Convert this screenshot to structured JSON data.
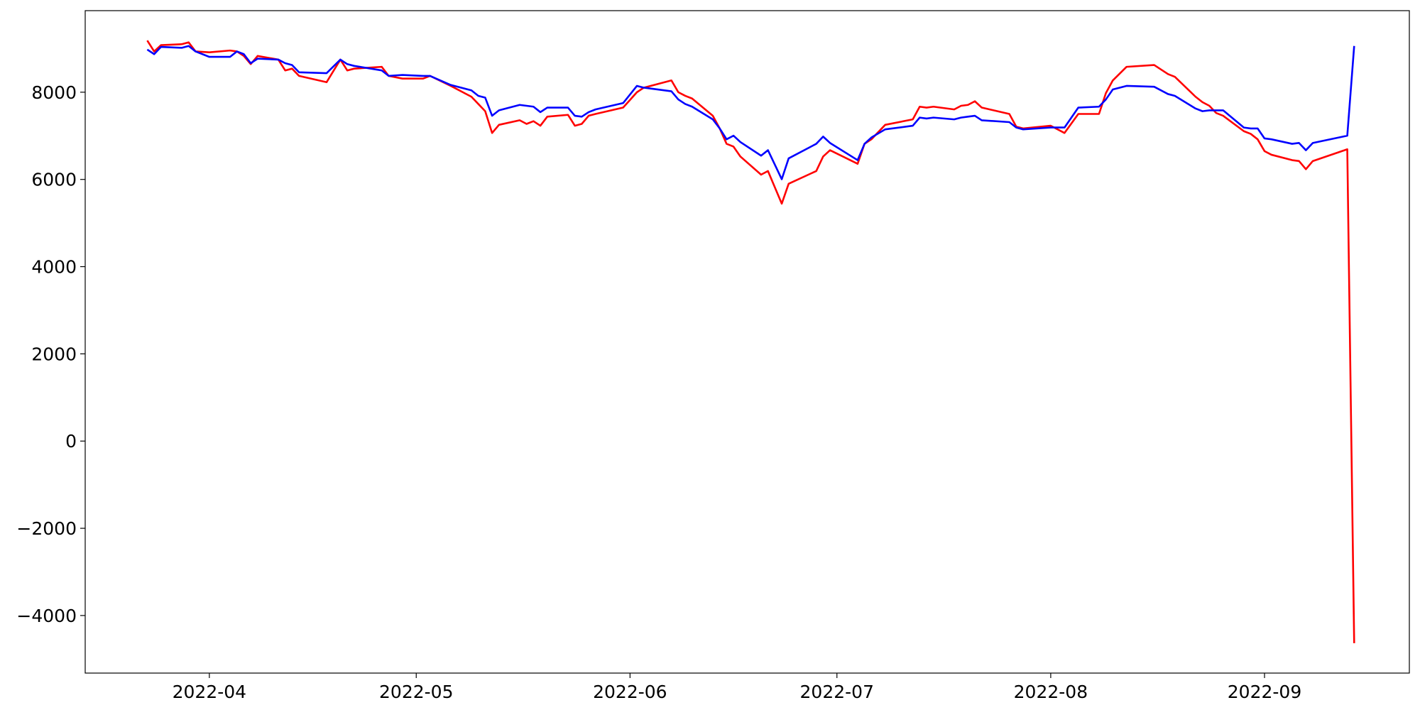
{
  "chart_data": {
    "type": "line",
    "x": [
      "2022-03-23",
      "2022-03-24",
      "2022-03-25",
      "2022-03-28",
      "2022-03-29",
      "2022-03-30",
      "2022-04-01",
      "2022-04-04",
      "2022-04-05",
      "2022-04-06",
      "2022-04-07",
      "2022-04-08",
      "2022-04-11",
      "2022-04-12",
      "2022-04-13",
      "2022-04-14",
      "2022-04-18",
      "2022-04-20",
      "2022-04-21",
      "2022-04-22",
      "2022-04-26",
      "2022-04-27",
      "2022-04-29",
      "2022-05-02",
      "2022-05-03",
      "2022-05-06",
      "2022-05-09",
      "2022-05-10",
      "2022-05-11",
      "2022-05-12",
      "2022-05-13",
      "2022-05-16",
      "2022-05-17",
      "2022-05-18",
      "2022-05-19",
      "2022-05-20",
      "2022-05-23",
      "2022-05-24",
      "2022-05-25",
      "2022-05-26",
      "2022-05-27",
      "2022-05-31",
      "2022-06-02",
      "2022-06-03",
      "2022-06-07",
      "2022-06-08",
      "2022-06-09",
      "2022-06-10",
      "2022-06-13",
      "2022-06-14",
      "2022-06-15",
      "2022-06-16",
      "2022-06-17",
      "2022-06-20",
      "2022-06-21",
      "2022-06-22",
      "2022-06-23",
      "2022-06-24",
      "2022-06-28",
      "2022-06-29",
      "2022-06-30",
      "2022-07-04",
      "2022-07-05",
      "2022-07-06",
      "2022-07-08",
      "2022-07-12",
      "2022-07-13",
      "2022-07-14",
      "2022-07-15",
      "2022-07-18",
      "2022-07-19",
      "2022-07-20",
      "2022-07-21",
      "2022-07-22",
      "2022-07-26",
      "2022-07-27",
      "2022-07-28",
      "2022-08-01",
      "2022-08-03",
      "2022-08-05",
      "2022-08-08",
      "2022-08-09",
      "2022-08-10",
      "2022-08-12",
      "2022-08-16",
      "2022-08-18",
      "2022-08-19",
      "2022-08-22",
      "2022-08-23",
      "2022-08-24",
      "2022-08-25",
      "2022-08-26",
      "2022-08-29",
      "2022-08-30",
      "2022-08-31",
      "2022-09-01",
      "2022-09-02",
      "2022-09-05",
      "2022-09-06",
      "2022-09-07",
      "2022-09-08",
      "2022-09-13",
      "2022-09-14"
    ],
    "series": [
      {
        "color": "#ff0000",
        "values": [
          9185,
          8935,
          9080,
          9101,
          9143,
          8935,
          8914,
          8956,
          8935,
          8831,
          8644,
          8831,
          8748,
          8499,
          8540,
          8374,
          8229,
          8748,
          8499,
          8540,
          8582,
          8374,
          8312,
          8312,
          8374,
          8145,
          7896,
          7730,
          7564,
          7065,
          7252,
          7356,
          7273,
          7335,
          7231,
          7439,
          7481,
          7231,
          7273,
          7460,
          7501,
          7647,
          8000,
          8104,
          8270,
          8000,
          7917,
          7855,
          7460,
          7169,
          6816,
          6753,
          6525,
          6109,
          6192,
          5818,
          5444,
          5901,
          6192,
          6525,
          6670,
          6358,
          6816,
          6920,
          7252,
          7377,
          7668,
          7647,
          7668,
          7605,
          7688,
          7709,
          7792,
          7647,
          7501,
          7210,
          7169,
          7231,
          7065,
          7501,
          7501,
          7979,
          8270,
          8582,
          8623,
          8416,
          8353,
          7896,
          7772,
          7688,
          7522,
          7460,
          7106,
          7044,
          6920,
          6649,
          6566,
          6442,
          6421,
          6234,
          6421,
          6691,
          -4634
        ]
      },
      {
        "color": "#0000ff",
        "values": [
          8977,
          8873,
          9039,
          9018,
          9060,
          8935,
          8810,
          8810,
          8935,
          8873,
          8665,
          8769,
          8748,
          8665,
          8623,
          8457,
          8436,
          8748,
          8644,
          8603,
          8499,
          8374,
          8395,
          8374,
          8374,
          8166,
          8042,
          7917,
          7875,
          7460,
          7584,
          7709,
          7688,
          7668,
          7543,
          7647,
          7647,
          7460,
          7439,
          7543,
          7605,
          7751,
          8145,
          8104,
          8021,
          7834,
          7730,
          7668,
          7377,
          7169,
          6920,
          7003,
          6857,
          6545,
          6670,
          6338,
          6005,
          6483,
          6816,
          6982,
          6836,
          6442,
          6816,
          6961,
          7148,
          7231,
          7418,
          7397,
          7418,
          7377,
          7418,
          7439,
          7460,
          7356,
          7314,
          7190,
          7148,
          7190,
          7190,
          7647,
          7668,
          7834,
          8062,
          8145,
          8125,
          7958,
          7917,
          7626,
          7564,
          7584,
          7584,
          7584,
          7190,
          7169,
          7169,
          6940,
          6920,
          6816,
          6836,
          6670,
          6836,
          7003,
          9060
        ]
      }
    ],
    "xlim": [
      "2022-03-14",
      "2022-09-22"
    ],
    "xticks": [
      {
        "value": "2022-04-01",
        "label": "2022-04"
      },
      {
        "value": "2022-05-01",
        "label": "2022-05"
      },
      {
        "value": "2022-06-01",
        "label": "2022-06"
      },
      {
        "value": "2022-07-01",
        "label": "2022-07"
      },
      {
        "value": "2022-08-01",
        "label": "2022-08"
      },
      {
        "value": "2022-09-01",
        "label": "2022-09"
      }
    ],
    "ylim": [
      -5320,
      9870
    ],
    "yticks": [
      {
        "value": -4000,
        "label": "−4000"
      },
      {
        "value": -2000,
        "label": "−2000"
      },
      0,
      2000,
      4000,
      6000,
      8000
    ],
    "grid": false
  }
}
